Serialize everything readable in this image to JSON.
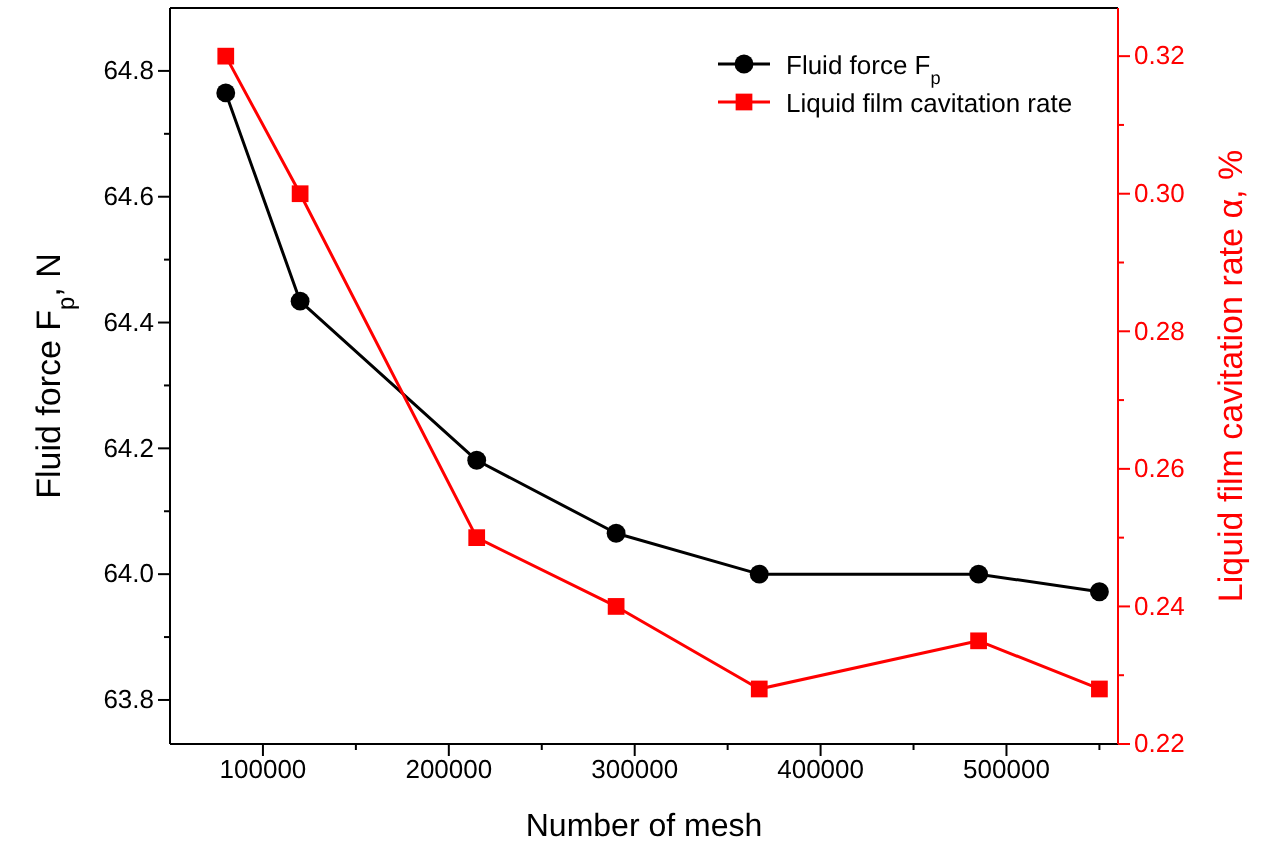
{
  "chart_data": {
    "type": "line",
    "xlabel": "Number of mesh",
    "ylabel": "Fluid force F$_{p}$, N",
    "y2label": "Liquid film cavitation rate α, %",
    "x": [
      80000,
      120000,
      215000,
      290000,
      367000,
      485000,
      550000
    ],
    "series": [
      {
        "name": "Fluid force F$_{p}$",
        "color": "#000000",
        "marker": "circle",
        "values": [
          64.765,
          64.434,
          64.181,
          64.065,
          64.0,
          64.0,
          63.972
        ]
      },
      {
        "name": "Liquid film cavitation rate",
        "color": "#ff0000",
        "marker": "square",
        "axis": "y2",
        "values": [
          0.32,
          0.3,
          0.25,
          0.24,
          0.228,
          0.235,
          0.228
        ]
      }
    ],
    "xlim": [
      50000,
      560000
    ],
    "xticks": [
      100000,
      {
        "value": 150000,
        "label": null
      },
      200000,
      {
        "value": 250000,
        "label": null
      },
      300000,
      {
        "value": 350000,
        "label": null
      },
      400000,
      {
        "value": 450000,
        "label": null
      },
      500000,
      {
        "value": 550000,
        "label": null
      }
    ],
    "ylim": [
      63.73,
      64.9
    ],
    "yticks": [
      {
        "value": 63.8,
        "label": "63.8"
      },
      {
        "value": 63.9,
        "label": null
      },
      {
        "value": 64.0,
        "label": "64.0"
      },
      {
        "value": 64.1,
        "label": null
      },
      {
        "value": 64.2,
        "label": "64.2"
      },
      {
        "value": 64.3,
        "label": null
      },
      {
        "value": 64.4,
        "label": "64.4"
      },
      {
        "value": 64.5,
        "label": null
      },
      {
        "value": 64.6,
        "label": "64.6"
      },
      {
        "value": 64.7,
        "label": null
      },
      {
        "value": 64.8,
        "label": "64.8"
      }
    ],
    "y2lim": [
      0.22,
      0.327
    ],
    "y2ticks": [
      {
        "value": 0.22,
        "label": "0.22"
      },
      {
        "value": 0.23,
        "label": null
      },
      {
        "value": 0.24,
        "label": "0.24"
      },
      {
        "value": 0.25,
        "label": null
      },
      {
        "value": 0.26,
        "label": "0.26"
      },
      {
        "value": 0.27,
        "label": null
      },
      {
        "value": 0.28,
        "label": "0.28"
      },
      {
        "value": 0.29,
        "label": null
      },
      {
        "value": 0.3,
        "label": "0.30"
      },
      {
        "value": 0.31,
        "label": null
      },
      {
        "value": 0.32,
        "label": "0.32"
      }
    ],
    "grid": false,
    "legend": "top right",
    "line_style": "solid"
  }
}
